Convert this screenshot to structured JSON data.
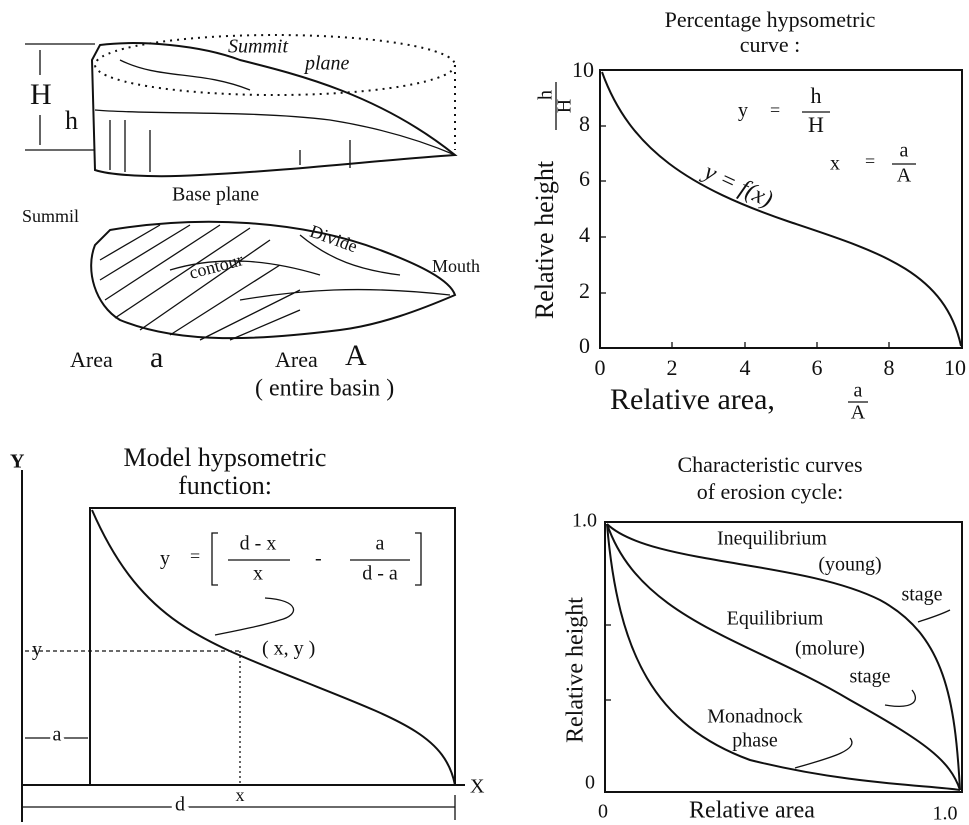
{
  "basin_sketch": {
    "summit_plane": [
      "Summit",
      "plane"
    ],
    "height_total": "H",
    "height_partial": "h",
    "base_plane": "Base plane",
    "summit": "Summil",
    "divide": "Divide",
    "contour": "contour",
    "mouth": "Mouth",
    "area_a": [
      "Area",
      "a"
    ],
    "area_A": [
      "Area",
      "A"
    ],
    "entire_basin": "( entire basin )"
  },
  "hypsometric_curve": {
    "title": [
      "Percentage hypsometric",
      "curve :"
    ],
    "y_label": "Relative height",
    "y_fraction": [
      "h",
      "H"
    ],
    "x_label": "Relative area,",
    "x_fraction": [
      "a",
      "A"
    ],
    "yticks": [
      "0",
      "2",
      "4",
      "6",
      "8",
      "10"
    ],
    "xticks": [
      "0",
      "2",
      "4",
      "6",
      "8",
      "10"
    ],
    "eq_y": [
      "y",
      "=",
      "h",
      "H"
    ],
    "eq_x": [
      "x",
      "=",
      "a",
      "A"
    ],
    "curve_label": "y = f(x)"
  },
  "model_function": {
    "y_axis": "Y",
    "title": [
      "Model hypsometric",
      "function:"
    ],
    "equation": [
      "y",
      "=",
      "d - x",
      "x",
      "-",
      "a",
      "d - a"
    ],
    "point": "( x, y )",
    "y_marker": "y",
    "a_marker": "a",
    "x_marker": "x",
    "d_marker": "d",
    "x_axis": "X"
  },
  "erosion_cycle": {
    "title": [
      "Characteristic curves",
      "of erosion cycle:"
    ],
    "y_label": "Relative height",
    "x_label": "Relative area",
    "yticks": [
      "0",
      "1.0"
    ],
    "xticks": [
      "0",
      "1.0"
    ],
    "young": [
      "Inequilibrium",
      "(young)",
      "stage"
    ],
    "mature": [
      "Equilibrium",
      "(molure)",
      "stage"
    ],
    "monadnock": [
      "Monadnock",
      "phase"
    ]
  }
}
